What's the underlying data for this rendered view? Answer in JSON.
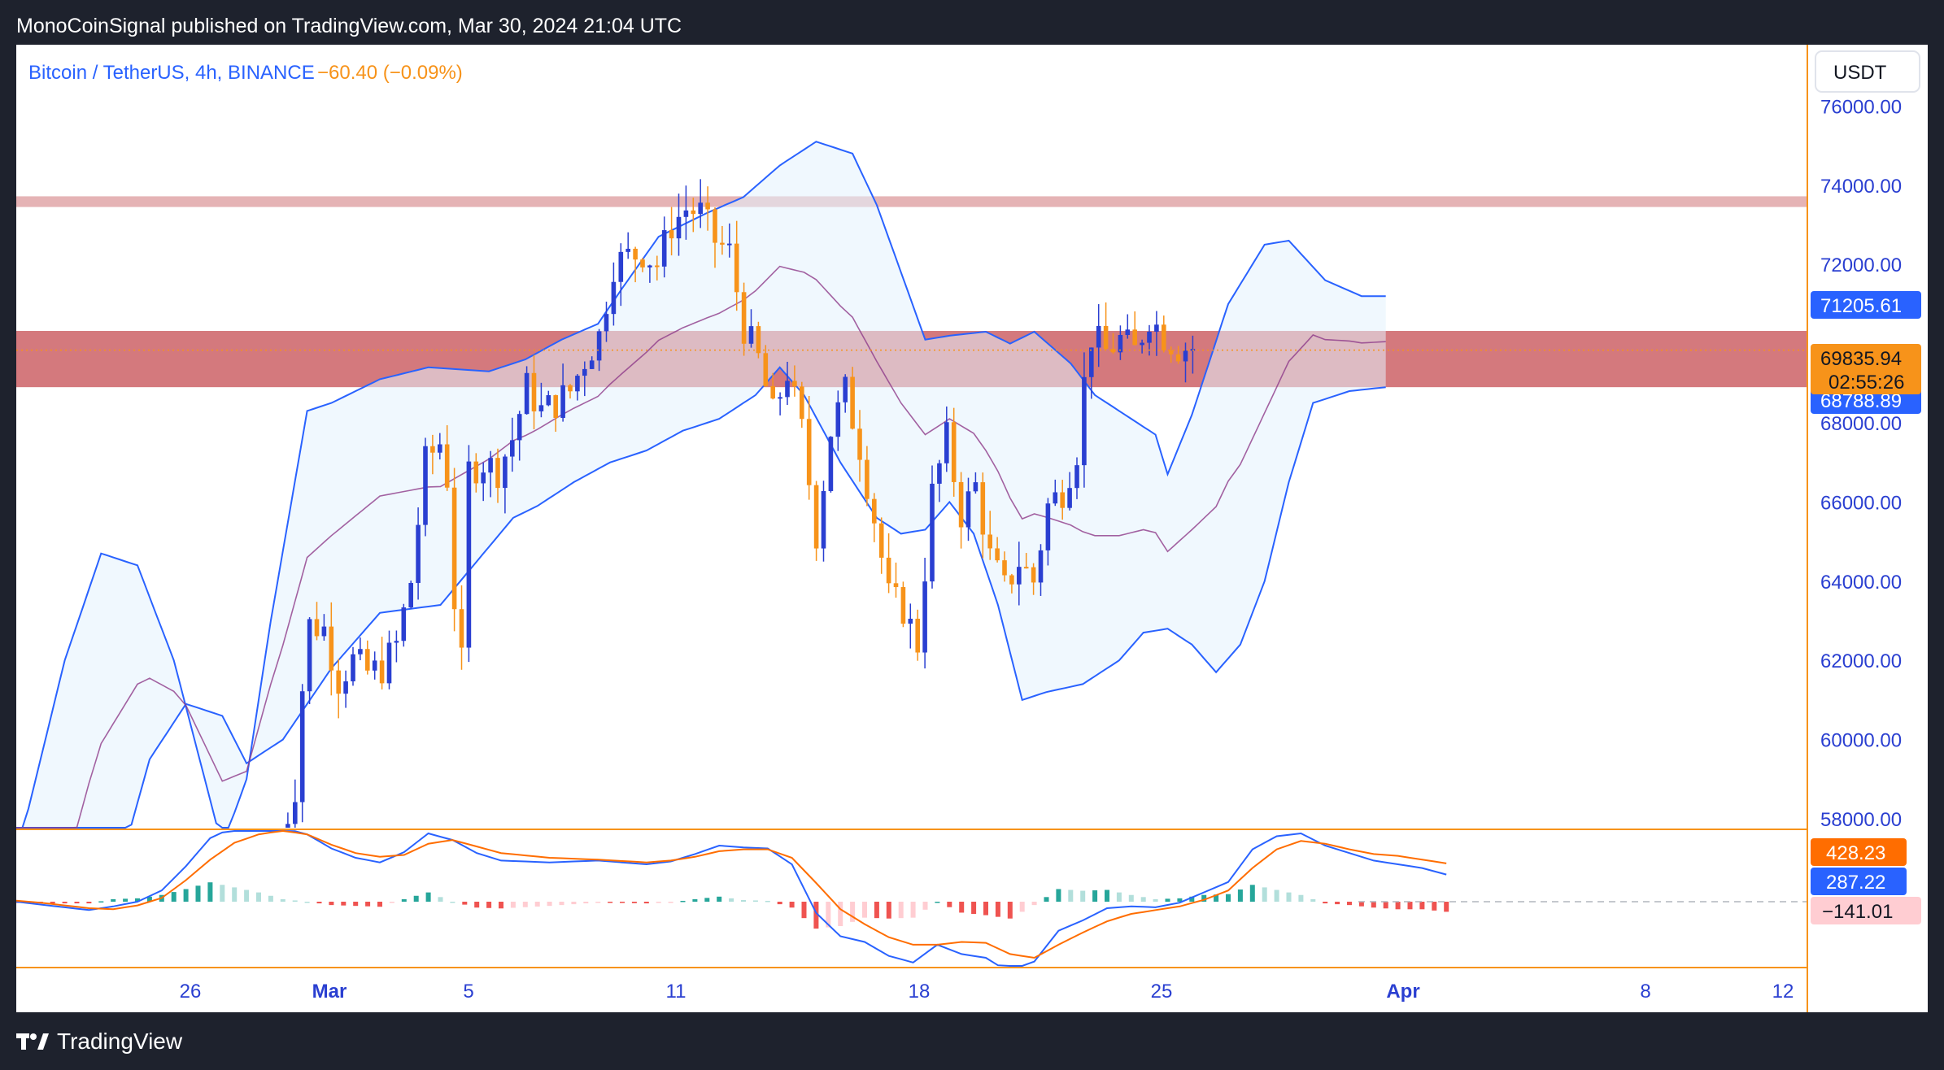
{
  "header": {
    "published_line": "MonoCoinSignal published on TradingView.com, Mar 30, 2024 21:04 UTC"
  },
  "legend": {
    "symbol": "Bitcoin / TetherUS, 4h, BINANCE",
    "change": "−60.40 (−0.09%)"
  },
  "price_axis": {
    "currency_button": "USDT",
    "ticks": [
      "76000.00",
      "74000.00",
      "72000.00",
      "68000.00",
      "66000.00",
      "64000.00",
      "62000.00",
      "60000.00",
      "58000.00"
    ],
    "tick_values": [
      76000,
      74000,
      72000,
      68000,
      66000,
      64000,
      62000,
      60000,
      58000
    ],
    "labels": {
      "upper_band": "71205.61",
      "last_price": "69835.94",
      "countdown": "02:55:26",
      "lower_band": "68788.89"
    }
  },
  "macd_axis": {
    "signal_label": "428.23",
    "macd_label": "287.22",
    "hist_label": "−141.01"
  },
  "time_axis": {
    "ticks": [
      {
        "label": "26",
        "bold": false
      },
      {
        "label": "Mar",
        "bold": true
      },
      {
        "label": "5",
        "bold": false
      },
      {
        "label": "11",
        "bold": false
      },
      {
        "label": "18",
        "bold": false
      },
      {
        "label": "25",
        "bold": false
      },
      {
        "label": "Apr",
        "bold": true
      },
      {
        "label": "8",
        "bold": false
      },
      {
        "label": "12",
        "bold": false
      }
    ]
  },
  "footer": {
    "brand": "TradingView"
  },
  "colors": {
    "bull": "#2a3fd1",
    "bear": "#f7931a",
    "band": "#2962ff",
    "zone_upper": "#dc9a9c",
    "zone_main": "#c9585d",
    "macd_line": "#2962ff",
    "signal_line": "#ff6d00",
    "hist_pos": "#26a69a",
    "hist_neg": "#ef5350"
  },
  "chart_data": {
    "type": "candlestick",
    "interval": "4h",
    "y_range": [
      57700,
      77000
    ],
    "resistance_zones": [
      {
        "from": 73450,
        "to": 73720
      },
      {
        "from": 68900,
        "to": 70320
      }
    ],
    "bollinger_anchors": {
      "upper": [
        [
          0,
          57000
        ],
        [
          4,
          62000
        ],
        [
          7,
          64700
        ],
        [
          10,
          64400
        ],
        [
          13,
          62000
        ],
        [
          17,
          57300
        ],
        [
          19,
          59000
        ],
        [
          21,
          63000
        ],
        [
          24,
          68300
        ],
        [
          26,
          68500
        ],
        [
          30,
          69100
        ],
        [
          34,
          69400
        ],
        [
          39,
          69300
        ],
        [
          42,
          69600
        ],
        [
          45,
          70100
        ],
        [
          48,
          70500
        ],
        [
          50,
          71400
        ],
        [
          53,
          72700
        ],
        [
          57,
          73300
        ],
        [
          60,
          73700
        ],
        [
          63,
          74500
        ],
        [
          66,
          75100
        ],
        [
          69,
          74800
        ],
        [
          71,
          73500
        ],
        [
          73,
          71800
        ],
        [
          75,
          70100
        ],
        [
          77,
          70200
        ],
        [
          80,
          70300
        ],
        [
          82,
          70000
        ],
        [
          84,
          70300
        ],
        [
          87,
          69500
        ],
        [
          89,
          68700
        ],
        [
          91,
          68300
        ],
        [
          94,
          67700
        ],
        [
          95,
          66700
        ],
        [
          97,
          68200
        ],
        [
          100,
          71000
        ],
        [
          103,
          72500
        ],
        [
          105,
          72600
        ],
        [
          108,
          71600
        ],
        [
          111,
          71200
        ],
        [
          113,
          71200
        ]
      ],
      "lower": [
        [
          0,
          46000
        ],
        [
          6,
          54000
        ],
        [
          9,
          57300
        ],
        [
          11,
          59500
        ],
        [
          14,
          60900
        ],
        [
          17,
          60600
        ],
        [
          19,
          59400
        ],
        [
          22,
          60000
        ],
        [
          26,
          61800
        ],
        [
          30,
          63200
        ],
        [
          35,
          63400
        ],
        [
          38,
          64500
        ],
        [
          41,
          65600
        ],
        [
          43,
          65900
        ],
        [
          46,
          66500
        ],
        [
          49,
          67000
        ],
        [
          52,
          67300
        ],
        [
          55,
          67800
        ],
        [
          58,
          68100
        ],
        [
          61,
          68700
        ],
        [
          63,
          69400
        ],
        [
          65,
          68700
        ],
        [
          68,
          67000
        ],
        [
          71,
          65600
        ],
        [
          73,
          65200
        ],
        [
          75,
          65300
        ],
        [
          77,
          66000
        ],
        [
          79,
          65200
        ],
        [
          81,
          63400
        ],
        [
          83,
          61000
        ],
        [
          85,
          61200
        ],
        [
          88,
          61400
        ],
        [
          91,
          62000
        ],
        [
          93,
          62700
        ],
        [
          95,
          62800
        ],
        [
          97,
          62400
        ],
        [
          99,
          61700
        ],
        [
          101,
          62400
        ],
        [
          103,
          64000
        ],
        [
          105,
          66500
        ],
        [
          107,
          68500
        ],
        [
          110,
          68800
        ],
        [
          113,
          68900
        ]
      ]
    },
    "candle_anchors": [
      [
        0,
        57400
      ],
      [
        2,
        58800
      ],
      [
        3,
        61300
      ],
      [
        4,
        62900
      ],
      [
        6,
        62800
      ],
      [
        8,
        61500
      ],
      [
        10,
        62000
      ],
      [
        12,
        61700
      ],
      [
        14,
        61800
      ],
      [
        16,
        62400
      ],
      [
        18,
        64000
      ],
      [
        20,
        67000
      ],
      [
        22,
        67500
      ],
      [
        23,
        66600
      ],
      [
        24,
        63500
      ],
      [
        25,
        61900
      ],
      [
        26,
        66800
      ],
      [
        28,
        67000
      ],
      [
        30,
        66800
      ],
      [
        32,
        67600
      ],
      [
        34,
        68900
      ],
      [
        36,
        68300
      ],
      [
        38,
        68500
      ],
      [
        40,
        68800
      ],
      [
        42,
        69600
      ],
      [
        44,
        70200
      ],
      [
        46,
        72000
      ],
      [
        48,
        72200
      ],
      [
        50,
        72300
      ],
      [
        52,
        72000
      ],
      [
        54,
        73000
      ],
      [
        56,
        73400
      ],
      [
        58,
        73300
      ],
      [
        60,
        72600
      ],
      [
        62,
        72300
      ],
      [
        64,
        70400
      ],
      [
        66,
        69600
      ],
      [
        68,
        68200
      ],
      [
        70,
        69300
      ],
      [
        72,
        67800
      ],
      [
        74,
        65200
      ],
      [
        76,
        67800
      ],
      [
        78,
        68800
      ],
      [
        80,
        67400
      ],
      [
        82,
        65600
      ],
      [
        84,
        63600
      ],
      [
        86,
        63300
      ],
      [
        88,
        62400
      ],
      [
        90,
        66200
      ],
      [
        92,
        67600
      ],
      [
        94,
        65700
      ],
      [
        96,
        66400
      ],
      [
        98,
        64600
      ],
      [
        100,
        63800
      ],
      [
        102,
        64500
      ],
      [
        104,
        64000
      ],
      [
        106,
        65900
      ],
      [
        108,
        66300
      ],
      [
        110,
        67300
      ],
      [
        111,
        69000
      ],
      [
        112,
        70200
      ],
      [
        114,
        69800
      ],
      [
        116,
        70100
      ],
      [
        118,
        69800
      ],
      [
        120,
        70700
      ],
      [
        122,
        70200
      ],
      [
        124,
        69900
      ],
      [
        126,
        69900
      ]
    ],
    "last_price": 69835.94,
    "bollinger_upper_last": 71205.61,
    "bollinger_lower_last": 68788.89,
    "macd": {
      "macd_last": 287.22,
      "signal_last": 428.23,
      "hist_last": -141.01,
      "y_range": [
        -800,
        1000
      ],
      "macd_anchors": [
        [
          0,
          0
        ],
        [
          2,
          -30
        ],
        [
          4,
          -60
        ],
        [
          6,
          -90
        ],
        [
          8,
          -50
        ],
        [
          10,
          0
        ],
        [
          12,
          120
        ],
        [
          14,
          380
        ],
        [
          16,
          680
        ],
        [
          18,
          800
        ],
        [
          20,
          830
        ],
        [
          22,
          790
        ],
        [
          24,
          720
        ],
        [
          26,
          570
        ],
        [
          28,
          470
        ],
        [
          30,
          420
        ],
        [
          32,
          530
        ],
        [
          34,
          730
        ],
        [
          36,
          660
        ],
        [
          38,
          520
        ],
        [
          40,
          440
        ],
        [
          44,
          420
        ],
        [
          48,
          440
        ],
        [
          52,
          400
        ],
        [
          54,
          430
        ],
        [
          56,
          510
        ],
        [
          58,
          600
        ],
        [
          60,
          580
        ],
        [
          62,
          570
        ],
        [
          64,
          400
        ],
        [
          66,
          -120
        ],
        [
          68,
          -370
        ],
        [
          70,
          -430
        ],
        [
          72,
          -580
        ],
        [
          74,
          -650
        ],
        [
          76,
          -460
        ],
        [
          78,
          -560
        ],
        [
          80,
          -600
        ],
        [
          82,
          -760
        ],
        [
          84,
          -640
        ],
        [
          86,
          -310
        ],
        [
          88,
          -200
        ],
        [
          90,
          -70
        ],
        [
          92,
          -50
        ],
        [
          94,
          -60
        ],
        [
          96,
          -10
        ],
        [
          98,
          100
        ],
        [
          100,
          210
        ],
        [
          102,
          560
        ],
        [
          104,
          700
        ],
        [
          106,
          730
        ],
        [
          108,
          600
        ],
        [
          110,
          520
        ],
        [
          112,
          440
        ],
        [
          114,
          400
        ],
        [
          116,
          360
        ],
        [
          118,
          290
        ]
      ],
      "signal_anchors": [
        [
          0,
          10
        ],
        [
          2,
          -10
        ],
        [
          4,
          -40
        ],
        [
          6,
          -70
        ],
        [
          8,
          -80
        ],
        [
          10,
          -40
        ],
        [
          12,
          40
        ],
        [
          14,
          230
        ],
        [
          16,
          450
        ],
        [
          18,
          630
        ],
        [
          20,
          720
        ],
        [
          22,
          760
        ],
        [
          24,
          720
        ],
        [
          26,
          610
        ],
        [
          28,
          520
        ],
        [
          30,
          480
        ],
        [
          32,
          500
        ],
        [
          34,
          620
        ],
        [
          36,
          660
        ],
        [
          38,
          590
        ],
        [
          40,
          520
        ],
        [
          44,
          470
        ],
        [
          48,
          450
        ],
        [
          52,
          420
        ],
        [
          54,
          440
        ],
        [
          56,
          480
        ],
        [
          58,
          540
        ],
        [
          60,
          560
        ],
        [
          62,
          560
        ],
        [
          64,
          470
        ],
        [
          66,
          200
        ],
        [
          68,
          -80
        ],
        [
          70,
          -240
        ],
        [
          72,
          -380
        ],
        [
          74,
          -460
        ],
        [
          76,
          -460
        ],
        [
          78,
          -430
        ],
        [
          80,
          -440
        ],
        [
          82,
          -560
        ],
        [
          84,
          -600
        ],
        [
          86,
          -460
        ],
        [
          88,
          -330
        ],
        [
          90,
          -210
        ],
        [
          92,
          -130
        ],
        [
          94,
          -90
        ],
        [
          96,
          -50
        ],
        [
          98,
          20
        ],
        [
          100,
          120
        ],
        [
          102,
          360
        ],
        [
          104,
          560
        ],
        [
          106,
          650
        ],
        [
          108,
          620
        ],
        [
          110,
          560
        ],
        [
          112,
          510
        ],
        [
          114,
          490
        ],
        [
          116,
          450
        ],
        [
          118,
          410
        ]
      ]
    }
  }
}
